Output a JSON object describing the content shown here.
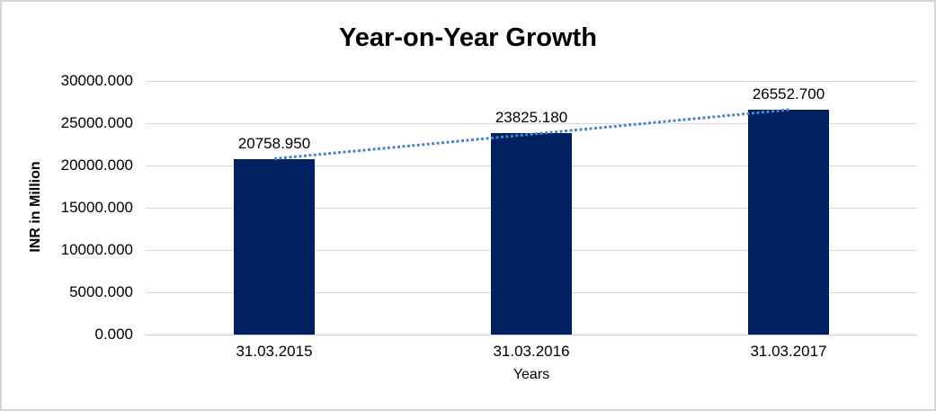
{
  "chart": {
    "title": "Year-on-Year Growth",
    "y_axis_title": "INR in Million",
    "x_axis_title": "Years",
    "colors": {
      "bar": "#002060",
      "trendline": "#4a86c8",
      "gridline": "#d9d9d9",
      "axis_line": "#c9c9c9",
      "chart_border": "#d6d6d6",
      "text": "#000000"
    }
  },
  "chart_data": {
    "type": "bar",
    "title": "Year-on-Year Growth",
    "xlabel": "Years",
    "ylabel": "INR in Million",
    "categories": [
      "31.03.2015",
      "31.03.2016",
      "31.03.2017"
    ],
    "values": [
      20758.95,
      23825.18,
      26552.7
    ],
    "data_labels": [
      "20758.950",
      "23825.180",
      "26552.700"
    ],
    "ylim": [
      0,
      30000
    ],
    "y_tick_step": 5000,
    "y_tick_labels": [
      "0.000",
      "5000.000",
      "10000.000",
      "15000.000",
      "20000.000",
      "25000.000",
      "30000.000"
    ],
    "grid": true,
    "legend": "none",
    "trendline": {
      "type": "linear",
      "line_style": "dotted"
    }
  }
}
